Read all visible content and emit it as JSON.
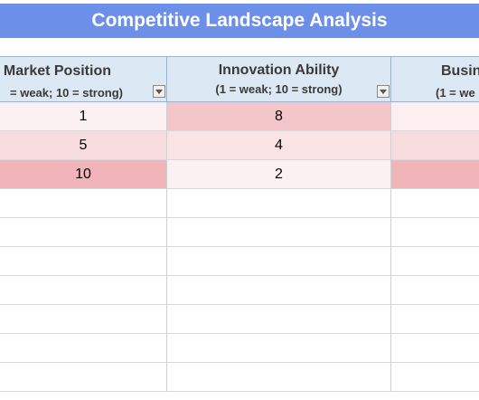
{
  "title": "Competitive Landscape Analysis",
  "columns": [
    {
      "title": "Market Position",
      "subtitle": "= weak; 10 = strong)"
    },
    {
      "title": "Innovation Ability",
      "subtitle": "(1 = weak; 10 = strong)"
    },
    {
      "title": "Busin",
      "subtitle": "(1 = we"
    }
  ],
  "rows": [
    {
      "values": [
        "1",
        "8",
        ""
      ],
      "colors": [
        "#fbf1f3",
        "#f4c6c9",
        "#fdeef0"
      ]
    },
    {
      "values": [
        "5",
        "4",
        ""
      ],
      "colors": [
        "#f7dcdf",
        "#f9e3e5",
        "#f7dcdf"
      ]
    },
    {
      "values": [
        "10",
        "2",
        ""
      ],
      "colors": [
        "#f0b4b9",
        "#fbf1f3",
        "#f0b4b9"
      ]
    }
  ],
  "icons": {
    "filter": "dropdown-filter-icon"
  }
}
